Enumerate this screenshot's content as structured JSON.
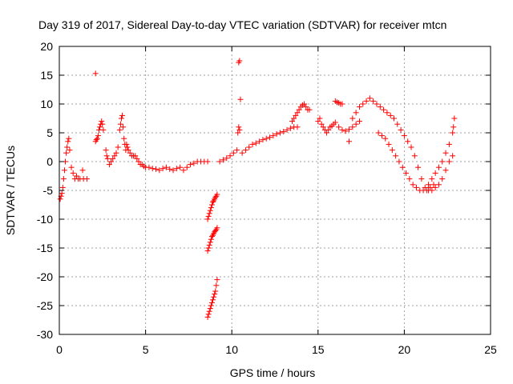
{
  "chart_data": {
    "type": "scatter",
    "title": "Day 319 of 2017, Sidereal Day-to-day VTEC variation (SDTVAR) for receiver mtcn",
    "xlabel": "GPS time / hours",
    "ylabel": "SDTVAR / TECUs",
    "xlim": [
      0,
      25
    ],
    "ylim": [
      -30,
      20
    ],
    "xticks": [
      0,
      5,
      10,
      15,
      20,
      25
    ],
    "yticks": [
      -30,
      -25,
      -20,
      -15,
      -10,
      -5,
      0,
      5,
      10,
      15,
      20
    ],
    "grid": true,
    "marker": "+",
    "color": "#ff0000",
    "series": [
      {
        "name": "SDTVAR",
        "x": [
          0.05,
          0.1,
          0.15,
          0.2,
          0.25,
          0.3,
          0.35,
          0.4,
          0.45,
          0.5,
          0.55,
          0.6,
          0.7,
          0.8,
          0.9,
          1.0,
          1.1,
          1.2,
          1.4,
          1.6,
          2.1,
          2.15,
          2.2,
          2.25,
          2.3,
          2.35,
          2.4,
          2.45,
          2.5,
          2.55,
          2.7,
          2.75,
          2.8,
          2.9,
          3.0,
          3.1,
          3.2,
          3.3,
          3.4,
          3.5,
          3.55,
          3.6,
          3.65,
          3.7,
          3.75,
          3.8,
          3.85,
          3.9,
          3.95,
          4.0,
          4.1,
          4.2,
          4.3,
          4.4,
          4.5,
          4.6,
          4.7,
          4.8,
          4.9,
          5.0,
          5.2,
          5.4,
          5.6,
          5.8,
          6.0,
          6.2,
          6.4,
          6.6,
          6.8,
          7.0,
          7.2,
          7.4,
          7.6,
          7.8,
          8.0,
          8.2,
          8.4,
          8.6,
          8.6,
          8.65,
          8.7,
          8.75,
          8.8,
          8.85,
          8.9,
          8.95,
          9.0,
          9.05,
          9.1,
          9.15,
          8.6,
          8.65,
          8.7,
          8.75,
          8.8,
          8.85,
          8.9,
          8.95,
          9.0,
          9.05,
          9.1,
          9.15,
          8.6,
          8.65,
          8.7,
          8.75,
          8.8,
          8.85,
          8.9,
          8.95,
          9.0,
          9.05,
          9.1,
          9.15,
          9.3,
          9.5,
          9.7,
          9.9,
          10.1,
          10.3,
          10.35,
          10.4,
          10.45,
          10.6,
          10.8,
          11.0,
          11.2,
          11.4,
          11.6,
          11.8,
          12.0,
          12.2,
          12.4,
          12.6,
          12.8,
          13.0,
          13.2,
          13.4,
          13.6,
          13.8,
          13.5,
          13.6,
          13.7,
          13.8,
          13.9,
          14.0,
          14.1,
          14.2,
          14.3,
          14.4,
          14.5,
          15.0,
          15.1,
          15.2,
          15.3,
          15.4,
          15.5,
          15.6,
          15.7,
          15.8,
          15.9,
          16.0,
          16.2,
          16.4,
          16.6,
          16.8,
          17.0,
          17.2,
          17.4,
          16.0,
          16.1,
          16.2,
          16.3,
          16.4,
          17.0,
          17.2,
          17.4,
          17.6,
          17.8,
          18.0,
          18.2,
          18.4,
          18.6,
          18.8,
          19.0,
          19.2,
          19.4,
          19.6,
          19.8,
          20.0,
          20.2,
          20.4,
          20.6,
          20.8,
          21.0,
          21.2,
          21.4,
          21.6,
          21.8,
          22.0,
          22.2,
          22.4,
          22.6,
          22.8,
          18.5,
          18.7,
          18.9,
          19.1,
          19.3,
          19.5,
          19.7,
          19.9,
          20.1,
          20.3,
          20.5,
          20.7,
          20.9,
          21.1,
          21.3,
          21.5,
          21.7,
          21.4,
          21.6,
          21.8,
          22.0,
          22.2,
          22.4,
          22.6,
          22.8,
          22.85,
          22.9,
          2.1,
          10.4,
          10.45,
          10.5,
          1.35,
          16.8
        ],
        "y": [
          -6.5,
          -6,
          -5.5,
          -4.5,
          -3,
          -1.5,
          0,
          1.5,
          2.5,
          3.5,
          4,
          2,
          -1,
          -2,
          -3,
          -2.5,
          -3,
          -3,
          -3,
          -3,
          3.5,
          3.8,
          4,
          4.5,
          5.5,
          6,
          6.5,
          7,
          6.5,
          5.5,
          2,
          1,
          0.5,
          -0.5,
          0,
          0.5,
          1,
          1.5,
          2.5,
          5.5,
          6.5,
          7.5,
          8,
          6,
          4,
          3,
          2,
          3,
          2.5,
          2,
          1.5,
          1,
          1,
          1,
          0.5,
          0,
          -0.5,
          -0.5,
          -0.8,
          -1,
          -1,
          -1.2,
          -1.3,
          -1.5,
          -1.2,
          -1,
          -1.3,
          -1.5,
          -1.2,
          -1,
          -1.5,
          -1,
          -0.5,
          -0.3,
          0,
          0,
          0,
          0,
          -10,
          -9.5,
          -9,
          -8.5,
          -8,
          -7.5,
          -7,
          -6.8,
          -6.5,
          -6.2,
          -6,
          -5.7,
          -15.5,
          -15,
          -14.5,
          -14,
          -13.5,
          -13,
          -12.8,
          -12.5,
          -12.2,
          -12,
          -11.8,
          -11.5,
          -27,
          -26.5,
          -26,
          -25.5,
          -25,
          -24.5,
          -24,
          -23.5,
          -23,
          -22.5,
          -21.5,
          -20.5,
          0,
          0.3,
          0.6,
          1,
          1.5,
          2,
          5,
          6,
          5.5,
          1.5,
          2,
          2.5,
          3,
          3.2,
          3.5,
          3.8,
          4,
          4.2,
          4.5,
          4.8,
          5,
          5.2,
          5.5,
          5.8,
          6,
          6,
          7,
          7.5,
          8,
          8.5,
          9,
          9.5,
          9.8,
          10,
          9.5,
          9,
          9,
          7,
          7.5,
          6.5,
          6,
          5.5,
          5,
          5.5,
          6,
          6.2,
          6.5,
          6.8,
          6,
          5.5,
          5.3,
          5.6,
          6,
          6.5,
          7,
          10.5,
          10.3,
          10.2,
          10,
          10,
          7.5,
          8.5,
          9.5,
          10,
          10.5,
          11,
          10.5,
          10,
          9.5,
          9,
          8.5,
          8,
          7.5,
          6.5,
          5.5,
          4.5,
          3.5,
          2.5,
          1,
          -1,
          -3,
          -4.5,
          -5,
          -5,
          -4.5,
          -4,
          -3,
          -1.5,
          0,
          1,
          5,
          4.5,
          4,
          3,
          2,
          1,
          0,
          -1,
          -2,
          -3,
          -4,
          -4.5,
          -5,
          -5,
          -5,
          -4.5,
          -4,
          -4,
          -3,
          -2,
          -1,
          0,
          1.5,
          3,
          5,
          6,
          7.5,
          15.3,
          17.2,
          17.5,
          10.8,
          -1.5,
          3.5
        ]
      }
    ]
  }
}
